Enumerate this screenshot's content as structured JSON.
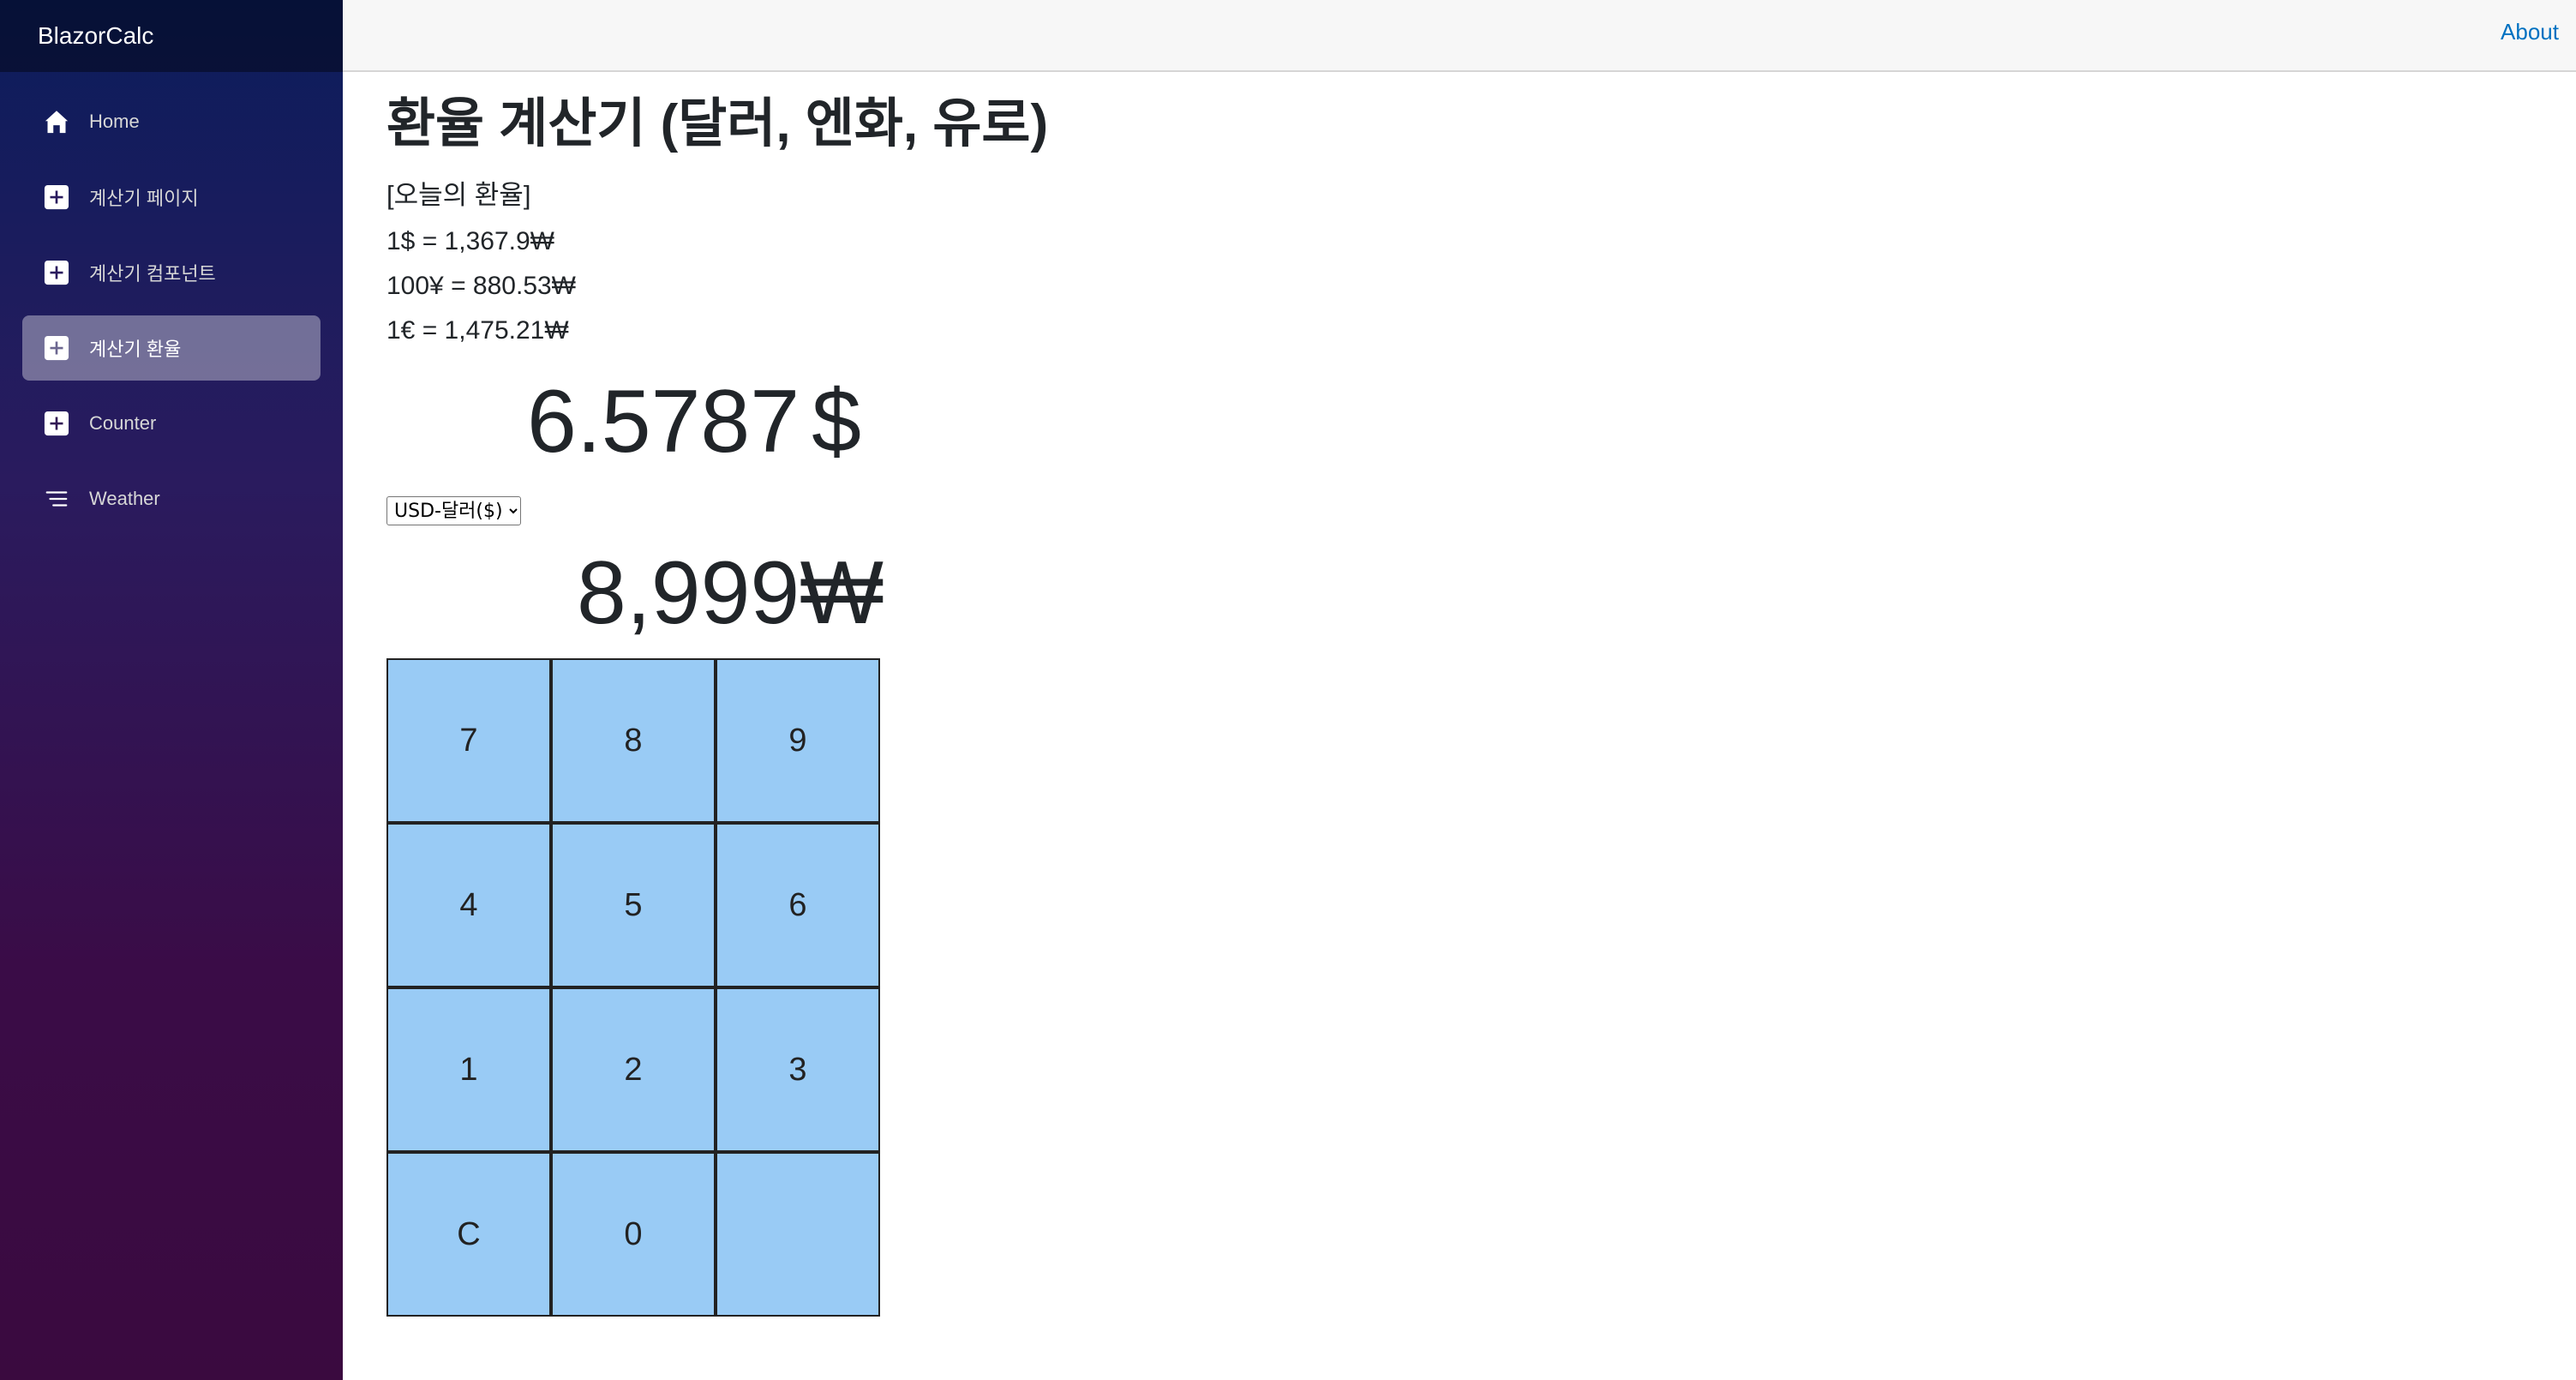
{
  "sidebar": {
    "brand": "BlazorCalc",
    "items": [
      {
        "label": "Home",
        "icon": "home-icon",
        "active": false
      },
      {
        "label": "계산기 페이지",
        "icon": "plus-icon",
        "active": false
      },
      {
        "label": "계산기 컴포넌트",
        "icon": "plus-icon",
        "active": false
      },
      {
        "label": "계산기 환율",
        "icon": "plus-icon",
        "active": true
      },
      {
        "label": "Counter",
        "icon": "plus-icon",
        "active": false
      },
      {
        "label": "Weather",
        "icon": "list-icon",
        "active": false
      }
    ]
  },
  "topbar": {
    "about_label": "About"
  },
  "main": {
    "title": "환율 계산기 (달러, 엔화, 유로)",
    "rates_heading": "[오늘의 환율]",
    "rates": [
      "1$ = 1,367.9₩",
      "100¥ = 880.53₩",
      "1€ = 1,475.21₩"
    ],
    "foreign_value": "6.5787",
    "foreign_symbol": "$",
    "currency_select": {
      "selected": "USD-달러($)"
    },
    "krw_value": "8,999₩",
    "keypad": [
      "7",
      "8",
      "9",
      "4",
      "5",
      "6",
      "1",
      "2",
      "3",
      "C",
      "0",
      ""
    ]
  },
  "colors": {
    "key_background": "#99cbf5",
    "about_link": "#0071c1",
    "active_nav": "rgba(255,255,255,0.37)"
  }
}
